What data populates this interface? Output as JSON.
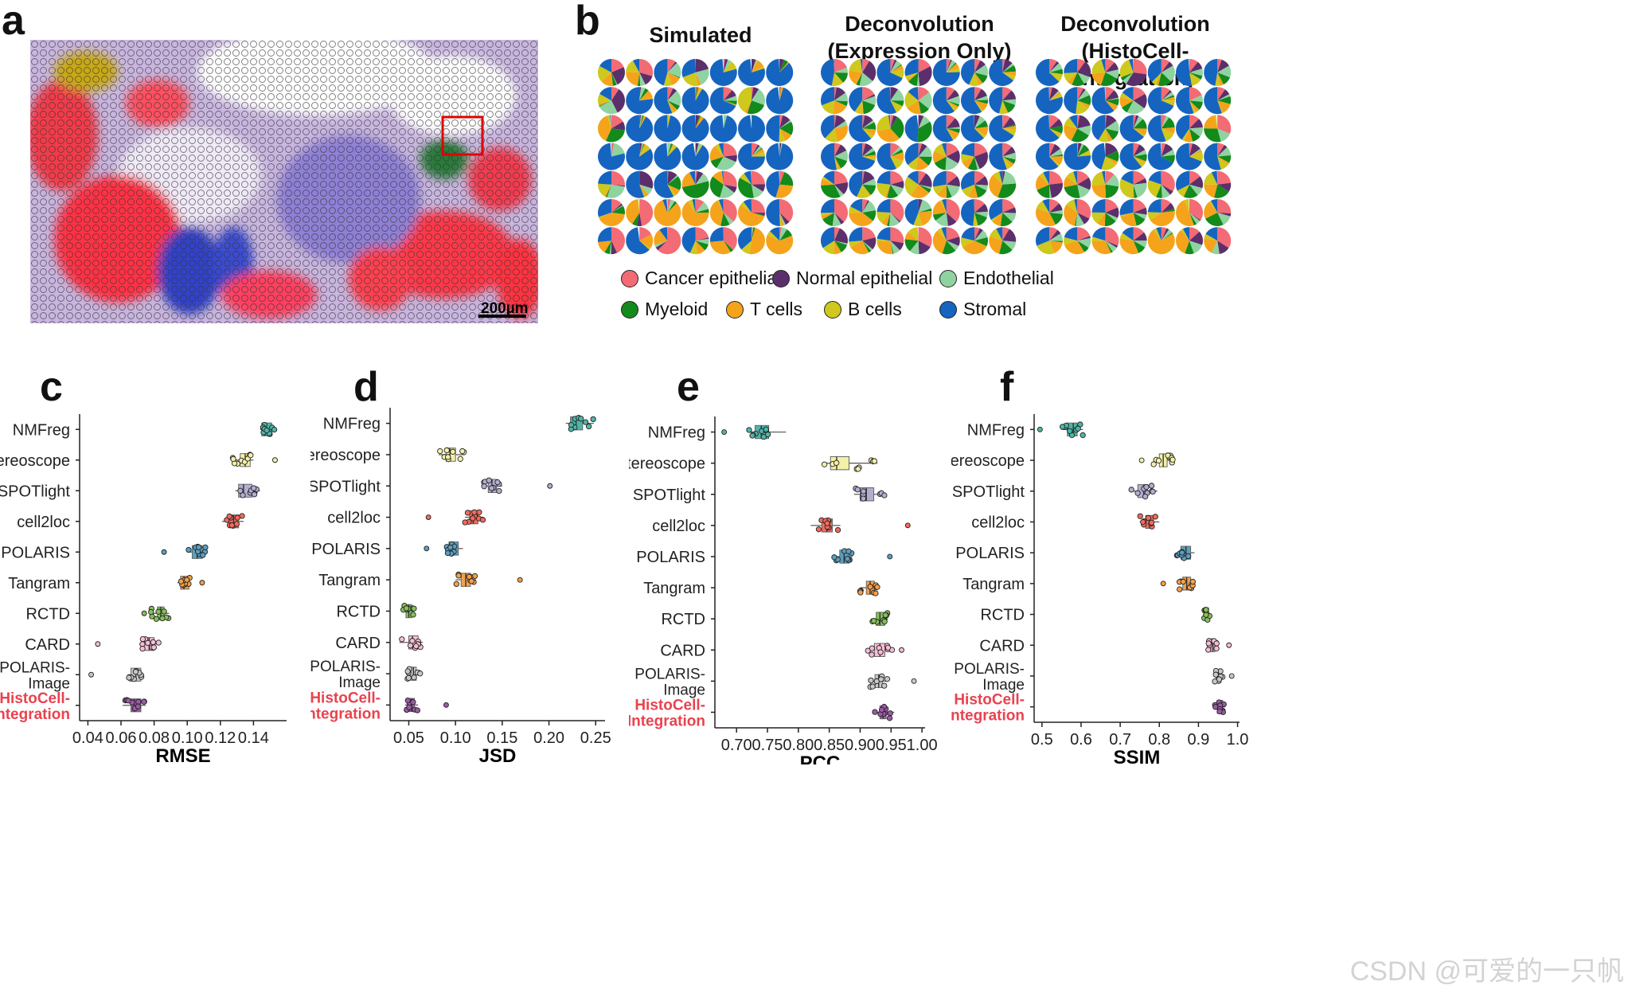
{
  "labels": {
    "a": "a",
    "b": "b",
    "c": "c",
    "d": "d",
    "e": "e",
    "f": "f"
  },
  "panel_a": {
    "scale_bar": "200µm"
  },
  "panel_b": {
    "titles": [
      "Simulated",
      "Deconvolution\n(Expression Only)",
      "Deconvolution\n(HistoCell-Integration)"
    ],
    "legend": [
      {
        "label": "Cancer epithelial",
        "color": "#f36b74"
      },
      {
        "label": "Normal epithelial",
        "color": "#5b2f6b"
      },
      {
        "label": "Endothelial",
        "color": "#8fd3a0"
      },
      {
        "label": "Myeloid",
        "color": "#138a1c"
      },
      {
        "label": "T cells",
        "color": "#f5a31a"
      },
      {
        "label": "B cells",
        "color": "#cfc81d"
      },
      {
        "label": "Stromal",
        "color": "#1565c0"
      }
    ]
  },
  "chart_data": [
    {
      "type": "box",
      "xlabel": "RMSE",
      "xlim": [
        0.035,
        0.16
      ],
      "ticks": [
        0.04,
        0.06,
        0.08,
        0.1,
        0.12,
        0.14
      ],
      "tick_labels": [
        "0.04",
        "0.06",
        "0.08",
        "0.10",
        "0.12",
        "0.14"
      ],
      "categories": [
        "NMFreg",
        "stereoscope",
        "SPOTlight",
        "cell2loc",
        "POLARIS",
        "Tangram",
        "RCTD",
        "CARD",
        "POLARIS-\nImage",
        "HistoCell-\nIntegration"
      ],
      "colors": [
        "#4fb5a8",
        "#f3f0a8",
        "#b3aed0",
        "#f36a5d",
        "#5a9fc0",
        "#f3a04c",
        "#86c05a",
        "#f6bdd6",
        "#c8c8c8",
        "#9b5aa5"
      ],
      "box": [
        [
          0.145,
          0.147,
          0.151
        ],
        [
          0.132,
          0.135,
          0.138
        ],
        [
          0.131,
          0.134,
          0.139
        ],
        [
          0.125,
          0.128,
          0.131
        ],
        [
          0.103,
          0.106,
          0.109
        ],
        [
          0.096,
          0.098,
          0.101
        ],
        [
          0.082,
          0.084,
          0.086
        ],
        [
          0.074,
          0.077,
          0.08
        ],
        [
          0.066,
          0.069,
          0.072
        ],
        [
          0.066,
          0.068,
          0.072
        ]
      ],
      "whisker": [
        [
          0.144,
          0.153
        ],
        [
          0.127,
          0.14
        ],
        [
          0.129,
          0.144
        ],
        [
          0.121,
          0.134
        ],
        [
          0.1,
          0.111
        ],
        [
          0.094,
          0.102
        ],
        [
          0.078,
          0.089
        ],
        [
          0.071,
          0.084
        ],
        [
          0.064,
          0.074
        ],
        [
          0.061,
          0.075
        ]
      ],
      "outliers": [
        [],
        [
          0.153
        ],
        [],
        [],
        [
          0.086
        ],
        [
          0.109
        ],
        [
          0.074
        ],
        [
          0.046
        ],
        [
          0.042
        ],
        []
      ]
    },
    {
      "type": "box",
      "xlabel": "JSD",
      "xlim": [
        0.03,
        0.26
      ],
      "ticks": [
        0.05,
        0.1,
        0.15,
        0.2,
        0.25
      ],
      "tick_labels": [
        "0.05",
        "0.10",
        "0.15",
        "0.20",
        "0.25"
      ],
      "categories": [
        "NMFreg",
        "stereoscope",
        "SPOTlight",
        "cell2loc",
        "POLARIS",
        "Tangram",
        "RCTD",
        "CARD",
        "POLARIS-\nImage",
        "HistoCell-\nIntegration"
      ],
      "colors": [
        "#4fb5a8",
        "#f3f0a8",
        "#b3aed0",
        "#f36a5d",
        "#5a9fc0",
        "#f3a04c",
        "#86c05a",
        "#f6bdd6",
        "#c8c8c8",
        "#9b5aa5"
      ],
      "box": [
        [
          0.223,
          0.229,
          0.236
        ],
        [
          0.09,
          0.094,
          0.1
        ],
        [
          0.135,
          0.139,
          0.144
        ],
        [
          0.115,
          0.119,
          0.124
        ],
        [
          0.093,
          0.097,
          0.103
        ],
        [
          0.106,
          0.111,
          0.116
        ],
        [
          0.047,
          0.05,
          0.053
        ],
        [
          0.05,
          0.054,
          0.06
        ],
        [
          0.052,
          0.055,
          0.058
        ],
        [
          0.05,
          0.053,
          0.056
        ]
      ],
      "whisker": [
        [
          0.218,
          0.248
        ],
        [
          0.082,
          0.11
        ],
        [
          0.13,
          0.15
        ],
        [
          0.11,
          0.13
        ],
        [
          0.088,
          0.108
        ],
        [
          0.1,
          0.122
        ],
        [
          0.044,
          0.056
        ],
        [
          0.04,
          0.065
        ],
        [
          0.048,
          0.063
        ],
        [
          0.046,
          0.06
        ]
      ],
      "outliers": [
        [],
        [],
        [
          0.201
        ],
        [
          0.071
        ],
        [
          0.069
        ],
        [
          0.169
        ],
        [],
        [],
        [],
        [
          0.09
        ]
      ]
    },
    {
      "type": "box",
      "xlabel": "PCC",
      "xlim": [
        0.665,
        1.005
      ],
      "ticks": [
        0.7,
        0.75,
        0.8,
        0.85,
        0.9,
        0.95,
        1.0
      ],
      "tick_labels": [
        "0.70",
        "0.75",
        "0.80",
        "0.85",
        "0.90",
        "0.95",
        "1.00"
      ],
      "categories": [
        "NMFreg",
        "stereoscope",
        "SPOTlight",
        "cell2loc",
        "POLARIS",
        "Tangram",
        "RCTD",
        "CARD",
        "POLARIS-\nImage",
        "HistoCell-\nIntegration"
      ],
      "colors": [
        "#4fb5a8",
        "#f3f0a8",
        "#b3aed0",
        "#f36a5d",
        "#5a9fc0",
        "#f3a04c",
        "#86c05a",
        "#f6bdd6",
        "#c8c8c8",
        "#9b5aa5"
      ],
      "box": [
        [
          0.73,
          0.74,
          0.752
        ],
        [
          0.852,
          0.862,
          0.882
        ],
        [
          0.9,
          0.91,
          0.922
        ],
        [
          0.838,
          0.846,
          0.855
        ],
        [
          0.867,
          0.874,
          0.882
        ],
        [
          0.91,
          0.916,
          0.923
        ],
        [
          0.926,
          0.932,
          0.94
        ],
        [
          0.923,
          0.932,
          0.94
        ],
        [
          0.924,
          0.93,
          0.936
        ],
        [
          0.932,
          0.937,
          0.942
        ]
      ],
      "whisker": [
        [
          0.72,
          0.78
        ],
        [
          0.84,
          0.928
        ],
        [
          0.89,
          0.942
        ],
        [
          0.82,
          0.868
        ],
        [
          0.855,
          0.888
        ],
        [
          0.9,
          0.93
        ],
        [
          0.918,
          0.945
        ],
        [
          0.91,
          0.955
        ],
        [
          0.915,
          0.945
        ],
        [
          0.922,
          0.955
        ]
      ],
      "outliers": [
        [
          0.68
        ],
        [],
        [],
        [
          0.977
        ],
        [
          0.948
        ],
        [],
        [],
        [
          0.967
        ],
        [
          0.987
        ],
        []
      ]
    },
    {
      "type": "box",
      "xlabel": "SSIM",
      "xlim": [
        0.48,
        1.005
      ],
      "ticks": [
        0.5,
        0.6,
        0.7,
        0.8,
        0.9,
        1.0
      ],
      "tick_labels": [
        "0.5",
        "0.6",
        "0.7",
        "0.8",
        "0.9",
        "1.0"
      ],
      "categories": [
        "NMFreg",
        "stereoscope",
        "SPOTlight",
        "cell2loc",
        "POLARIS",
        "Tangram",
        "RCTD",
        "CARD",
        "POLARIS-\nImage",
        "HistoCell-\nIntegration"
      ],
      "colors": [
        "#4fb5a8",
        "#f3f0a8",
        "#b3aed0",
        "#f36a5d",
        "#5a9fc0",
        "#f3a04c",
        "#86c05a",
        "#f6bdd6",
        "#c8c8c8",
        "#9b5aa5"
      ],
      "box": [
        [
          0.565,
          0.58,
          0.59
        ],
        [
          0.8,
          0.81,
          0.82
        ],
        [
          0.745,
          0.76,
          0.77
        ],
        [
          0.765,
          0.775,
          0.785
        ],
        [
          0.855,
          0.868,
          0.88
        ],
        [
          0.86,
          0.87,
          0.88
        ],
        [
          0.918,
          0.922,
          0.926
        ],
        [
          0.932,
          0.937,
          0.942
        ],
        [
          0.945,
          0.95,
          0.955
        ],
        [
          0.948,
          0.955,
          0.962
        ]
      ],
      "whisker": [
        [
          0.55,
          0.605
        ],
        [
          0.785,
          0.835
        ],
        [
          0.725,
          0.795
        ],
        [
          0.75,
          0.8
        ],
        [
          0.845,
          0.89
        ],
        [
          0.85,
          0.89
        ],
        [
          0.912,
          0.93
        ],
        [
          0.925,
          0.95
        ],
        [
          0.94,
          0.962
        ],
        [
          0.942,
          0.968
        ]
      ],
      "outliers": [
        [
          0.495
        ],
        [
          0.755
        ],
        [],
        [],
        [],
        [
          0.81
        ],
        [],
        [
          0.978
        ],
        [
          0.985
        ],
        []
      ]
    }
  ],
  "watermark": "CSDN @可爱的一只帆"
}
